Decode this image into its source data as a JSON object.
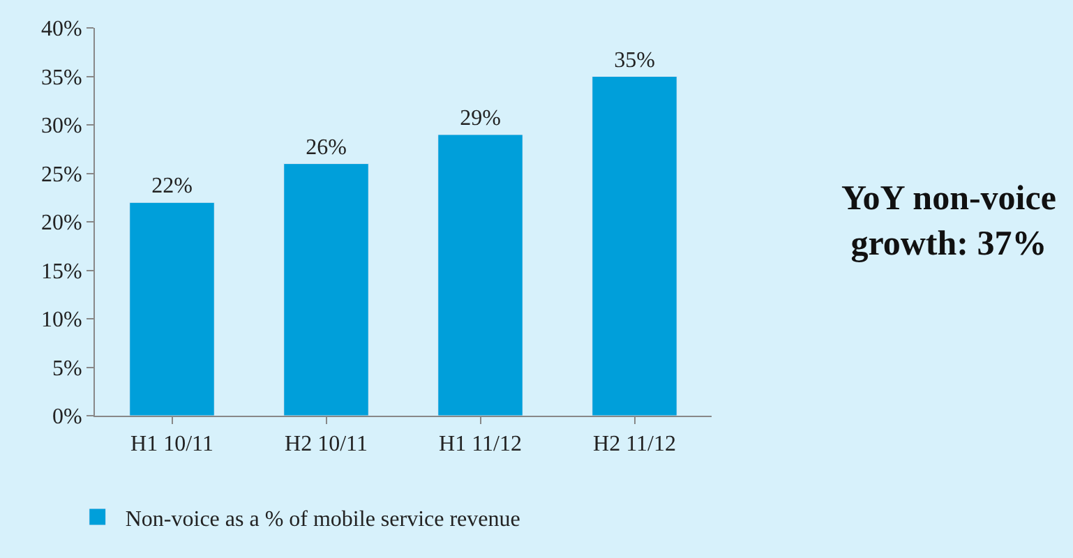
{
  "chart_data": {
    "type": "bar",
    "categories": [
      "H1 10/11",
      "H2 10/11",
      "H1 11/12",
      "H2 11/12"
    ],
    "series": [
      {
        "name": "Non-voice as a % of mobile service revenue",
        "color": "#009fda",
        "values": [
          22,
          26,
          29,
          35
        ],
        "value_labels": [
          "22%",
          "26%",
          "29%",
          "35%"
        ]
      }
    ],
    "ylim": [
      0,
      40
    ],
    "yticks": [
      {
        "value": 0,
        "label": "0%"
      },
      {
        "value": 5,
        "label": "5%"
      },
      {
        "value": 10,
        "label": "10%"
      },
      {
        "value": 15,
        "label": "15%"
      },
      {
        "value": 20,
        "label": "20%"
      },
      {
        "value": 25,
        "label": "25%"
      },
      {
        "value": 30,
        "label": "30%"
      },
      {
        "value": 35,
        "label": "35%"
      },
      {
        "value": 40,
        "label": "40%"
      }
    ],
    "legend": "bottom",
    "annotations": [
      "YoY non-voice\ngrowth: 37%"
    ]
  }
}
